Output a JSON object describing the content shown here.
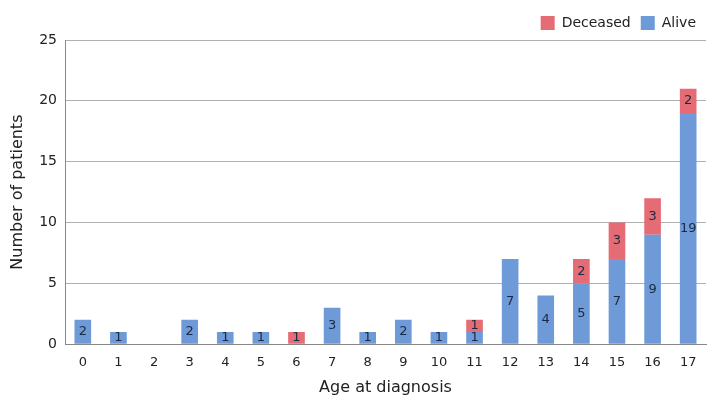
{
  "chart_data": {
    "type": "bar",
    "stacked": true,
    "categories": [
      "0",
      "1",
      "2",
      "3",
      "4",
      "5",
      "6",
      "7",
      "8",
      "9",
      "10",
      "11",
      "12",
      "13",
      "14",
      "15",
      "16",
      "17"
    ],
    "series": [
      {
        "name": "Alive",
        "color": "#6f9ad8",
        "values": [
          2,
          1,
          0,
          2,
          1,
          1,
          0,
          3,
          1,
          2,
          1,
          1,
          7,
          4,
          5,
          7,
          9,
          19
        ]
      },
      {
        "name": "Deceased",
        "color": "#e56b74",
        "values": [
          0,
          0,
          0,
          0,
          0,
          0,
          1,
          0,
          0,
          0,
          0,
          1,
          0,
          0,
          2,
          3,
          3,
          2
        ]
      }
    ],
    "x_label": "Age at diagnosis",
    "y_label": "Number of patients",
    "ylim": [
      0,
      25
    ],
    "yticks": [
      0,
      5,
      10,
      15,
      20,
      25
    ],
    "grid": true,
    "legend": "upper right",
    "data_labels": true
  }
}
